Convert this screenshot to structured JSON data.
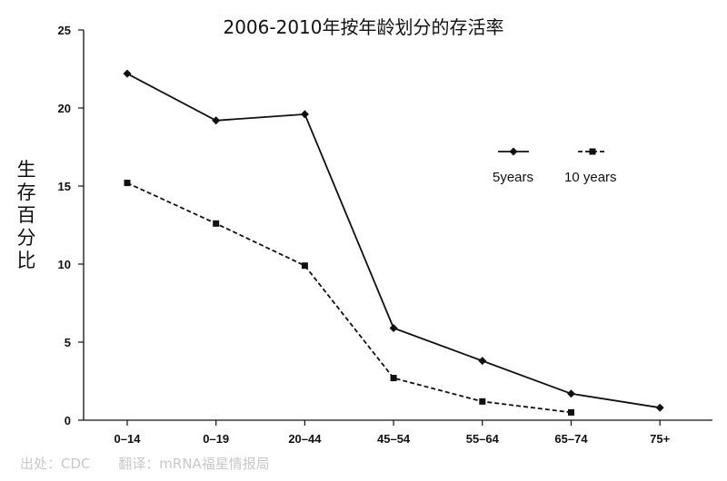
{
  "chart_data": {
    "type": "line",
    "title": "2006-2010年按年龄划分的存活率",
    "ylabel": "生存百分比",
    "xlabel": "",
    "categories": [
      "0–14",
      "0–19",
      "20–44",
      "45–54",
      "55–64",
      "65–74",
      "75+"
    ],
    "ylim": [
      0,
      25
    ],
    "yticks": [
      0,
      5,
      10,
      15,
      20,
      25
    ],
    "grid": false,
    "legend_position": "right",
    "series": [
      {
        "name": "5years",
        "marker": "diamond",
        "line": "solid",
        "values": [
          22.2,
          19.2,
          19.6,
          5.9,
          3.8,
          1.7,
          0.8
        ]
      },
      {
        "name": "10 years",
        "marker": "square",
        "line": "dashed",
        "values": [
          15.2,
          12.6,
          9.9,
          2.7,
          1.2,
          0.5,
          null
        ]
      }
    ]
  },
  "footer": {
    "source": "出处：CDC",
    "translator": "翻译：mRNA福星情报局"
  }
}
